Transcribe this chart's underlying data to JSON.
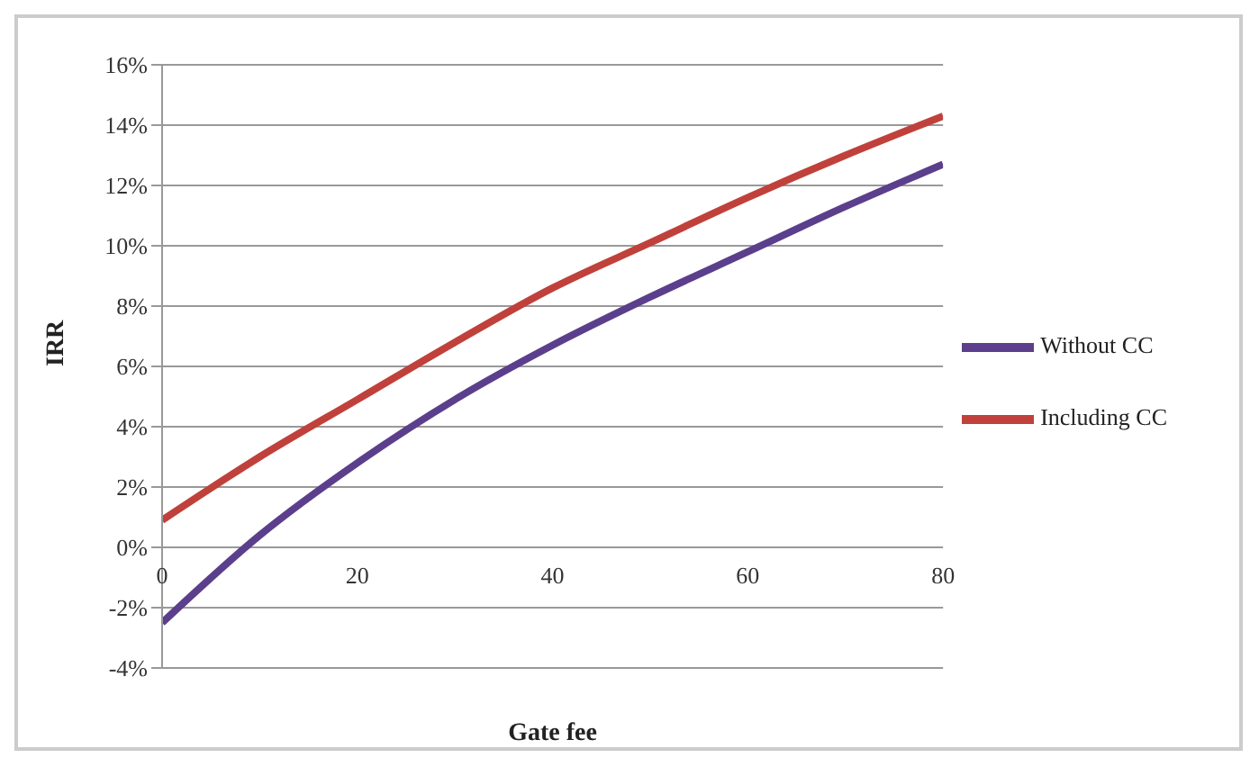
{
  "chart_data": {
    "type": "line",
    "xlabel": "Gate fee",
    "ylabel": "IRR",
    "x": [
      0,
      10,
      20,
      30,
      40,
      50,
      60,
      70,
      80
    ],
    "series": [
      {
        "name": "Without CC",
        "color": "#5b3f8c",
        "values": [
          -2.5,
          0.4,
          2.8,
          4.9,
          6.7,
          8.3,
          9.8,
          11.3,
          12.7
        ]
      },
      {
        "name": "Including CC",
        "color": "#c0413b",
        "values": [
          0.9,
          3.0,
          4.9,
          6.8,
          8.6,
          10.1,
          11.6,
          13.0,
          14.3
        ]
      }
    ],
    "xlim": [
      0,
      80
    ],
    "xticks": [
      0,
      20,
      40,
      60,
      80
    ],
    "ylim": [
      -4,
      16
    ],
    "yticks": [
      {
        "value": -4,
        "label": "-4%"
      },
      {
        "value": -2,
        "label": "-2%"
      },
      {
        "value": 0,
        "label": "0%"
      },
      {
        "value": 2,
        "label": "2%"
      },
      {
        "value": 4,
        "label": "4%"
      },
      {
        "value": 6,
        "label": "6%"
      },
      {
        "value": 8,
        "label": "8%"
      },
      {
        "value": 10,
        "label": "10%"
      },
      {
        "value": 12,
        "label": "12%"
      },
      {
        "value": 14,
        "label": "14%"
      },
      {
        "value": 16,
        "label": "16%"
      }
    ],
    "grid": "y",
    "legend": "right",
    "marker": "none",
    "line_style": "solid"
  }
}
